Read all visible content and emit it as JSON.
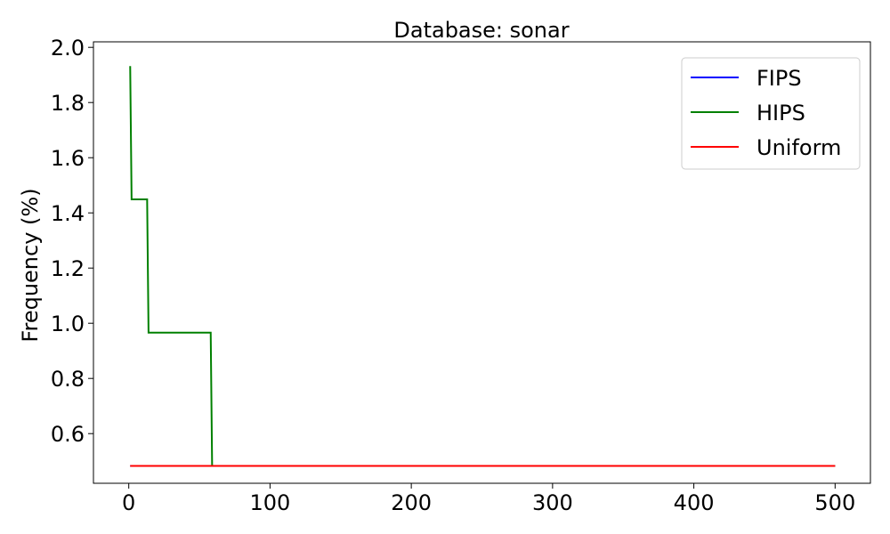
{
  "chart_data": {
    "type": "line",
    "title": "Database: sonar",
    "xlabel": "",
    "ylabel": "Frequency (%)",
    "xlim": [
      -25,
      525
    ],
    "ylim": [
      0.42,
      2.02
    ],
    "xticks": [
      0,
      100,
      200,
      300,
      400,
      500
    ],
    "yticks": [
      0.6,
      0.8,
      1.0,
      1.2,
      1.4,
      1.6,
      1.8,
      2.0
    ],
    "grid": false,
    "legend_position": "top-right",
    "series": [
      {
        "name": "FIPS",
        "color": "#0000ff",
        "x": [
          1,
          500
        ],
        "y": [
          0.483,
          0.483
        ]
      },
      {
        "name": "HIPS",
        "color": "#008000",
        "x": [
          1,
          2,
          13,
          14,
          58,
          59,
          500
        ],
        "y": [
          1.932,
          1.449,
          1.449,
          0.966,
          0.966,
          0.483,
          0.483
        ]
      },
      {
        "name": "Uniform",
        "color": "#ff0000",
        "x": [
          1,
          500
        ],
        "y": [
          0.483,
          0.483
        ]
      }
    ]
  }
}
